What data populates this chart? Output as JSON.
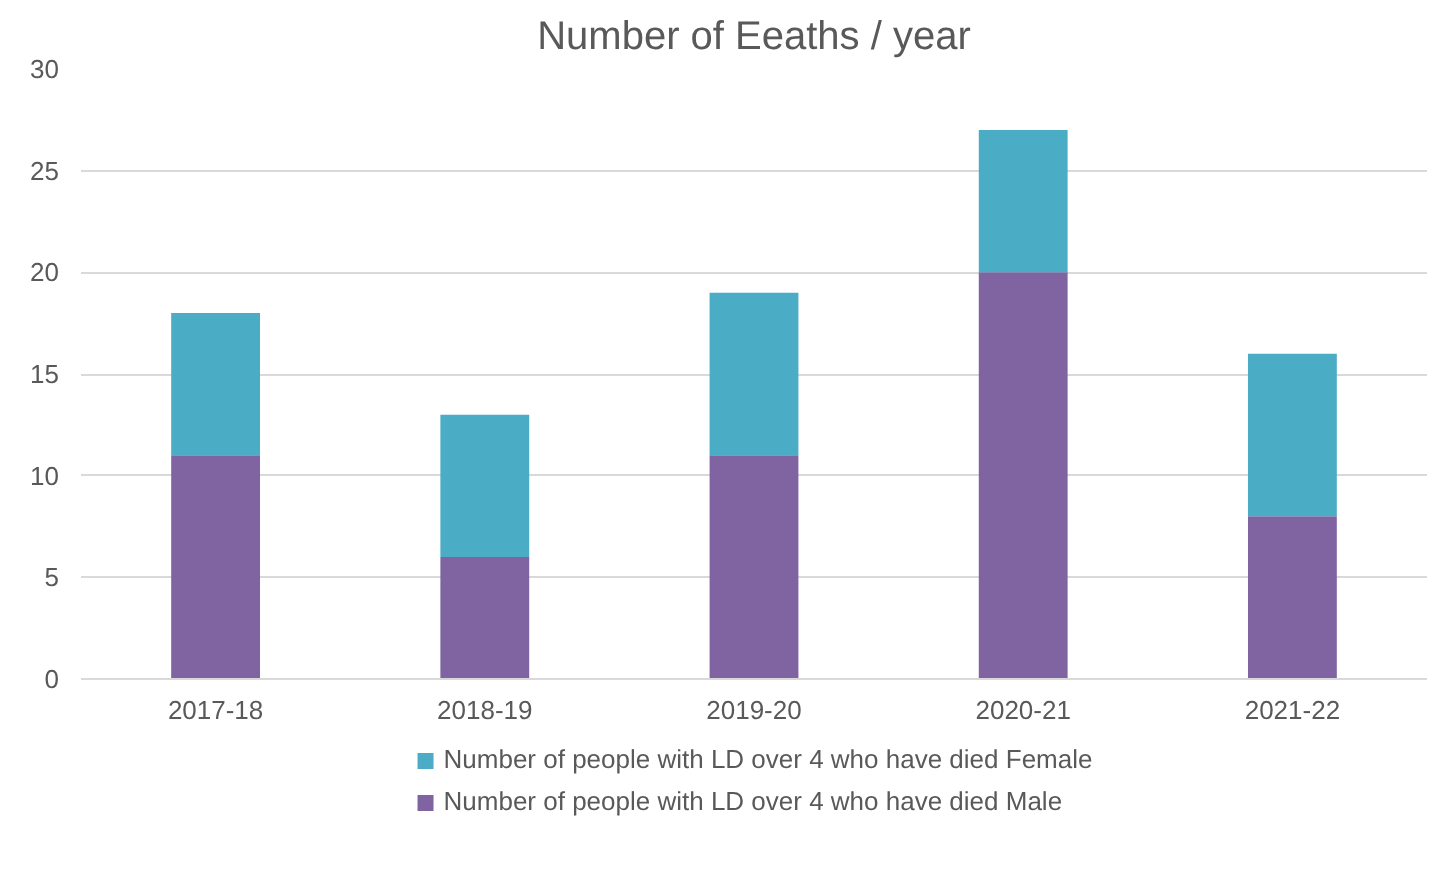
{
  "chart_data": {
    "type": "bar",
    "title": "Number of Eeaths / year",
    "stacked": true,
    "categories": [
      "2017-18",
      "2018-19",
      "2019-20",
      "2020-21",
      "2021-22"
    ],
    "series": [
      {
        "name": "Number of people with LD over 4 who have died Male",
        "color": "#8064a2",
        "values": [
          11,
          6,
          11,
          20,
          8
        ]
      },
      {
        "name": "Number of people with LD over 4 who have died Female",
        "color": "#4bacc6",
        "values": [
          7,
          7,
          8,
          7,
          8
        ]
      }
    ],
    "ylim": [
      0,
      30
    ],
    "yticks": [
      0,
      5,
      10,
      15,
      20,
      25,
      30
    ],
    "grid": "y",
    "legend": "bottom"
  }
}
